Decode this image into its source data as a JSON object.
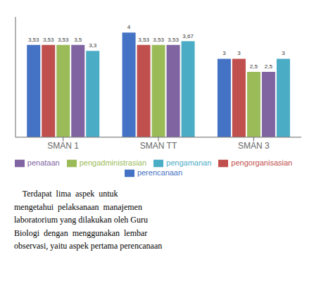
{
  "chart_data": {
    "type": "bar",
    "categories": [
      "SMAN 1",
      "SMAN TT",
      "SMAN 3"
    ],
    "series": [
      {
        "name": "perencanaan",
        "color": "#4472C4",
        "values": [
          3.53,
          4.0,
          3.0
        ],
        "value_labels": [
          "3,53",
          "4",
          "3"
        ]
      },
      {
        "name": "pengorganisasian",
        "color": "#C0504D",
        "values": [
          3.53,
          3.53,
          3.0
        ],
        "value_labels": [
          "3,53",
          "3,53",
          "3"
        ]
      },
      {
        "name": "pengadministrasian",
        "color": "#9BBB59",
        "values": [
          3.53,
          3.53,
          2.5
        ],
        "value_labels": [
          "3,53",
          "3,53",
          "2,5"
        ]
      },
      {
        "name": "penataan",
        "color": "#8064A2",
        "values": [
          3.53,
          3.53,
          2.5
        ],
        "value_labels": [
          "3,5",
          "3,53",
          "2,5"
        ]
      },
      {
        "name": "pengamanan",
        "color": "#4BACC6",
        "values": [
          3.3,
          3.67,
          3.0
        ],
        "value_labels": [
          "3,3",
          "3,67",
          "3"
        ]
      }
    ],
    "ylim": [
      0,
      4.6
    ],
    "data_labels": true,
    "tick_labels": "x",
    "grid": false,
    "annotations": [
      "    Terdapat  lima  aspek  untuk",
      "mengetahui  pelaksanaan  manajemen",
      "laboratorium yang dilakukan oleh Guru",
      "Biologi  dengan  menggunakan  lembar",
      "observasi, yaitu aspek pertama perencanaan"
    ]
  }
}
